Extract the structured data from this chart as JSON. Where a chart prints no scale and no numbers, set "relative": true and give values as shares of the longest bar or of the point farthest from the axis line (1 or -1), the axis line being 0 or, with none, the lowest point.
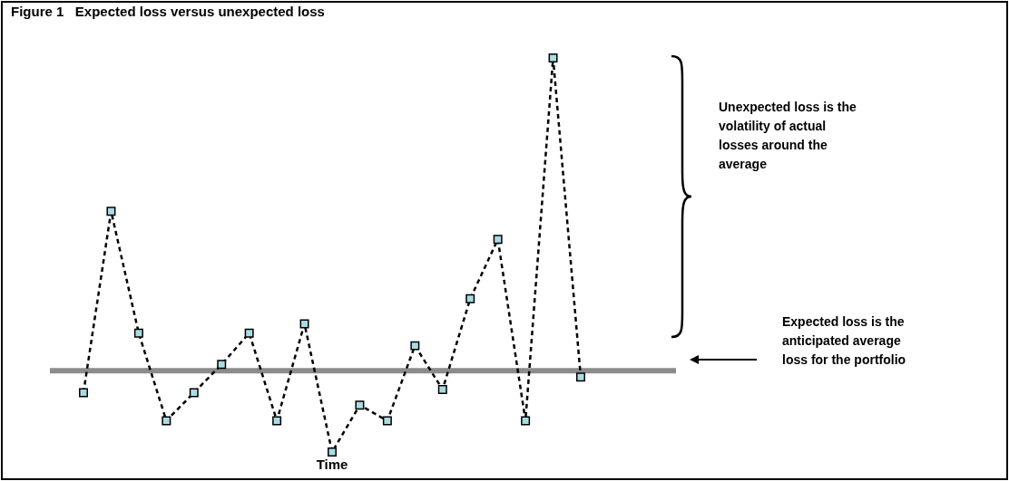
{
  "chart_data": {
    "type": "line",
    "title": "Figure 1   Expected loss versus unexpected loss",
    "xlabel": "Time",
    "categories": [
      null,
      null,
      null,
      null,
      null,
      null,
      null,
      null,
      null,
      null,
      null,
      null,
      null,
      null,
      null,
      null,
      null,
      null,
      null
    ],
    "relative": true,
    "series": [
      {
        "color": "#000000",
        "values": [
          -0.07,
          0.51,
          0.12,
          -0.16,
          -0.07,
          0.02,
          0.12,
          -0.16,
          0.15,
          -0.26,
          -0.11,
          -0.16,
          0.08,
          -0.06,
          0.23,
          0.42,
          -0.16,
          1,
          -0.02
        ]
      }
    ],
    "marker": "square",
    "line_style": "dashed",
    "grid": false,
    "legend": false,
    "tick_labels": false,
    "annotations": [
      "Unexpected loss is the volatility of actual losses around the average",
      "Expected loss is the anticipated average loss for the portfolio"
    ]
  }
}
